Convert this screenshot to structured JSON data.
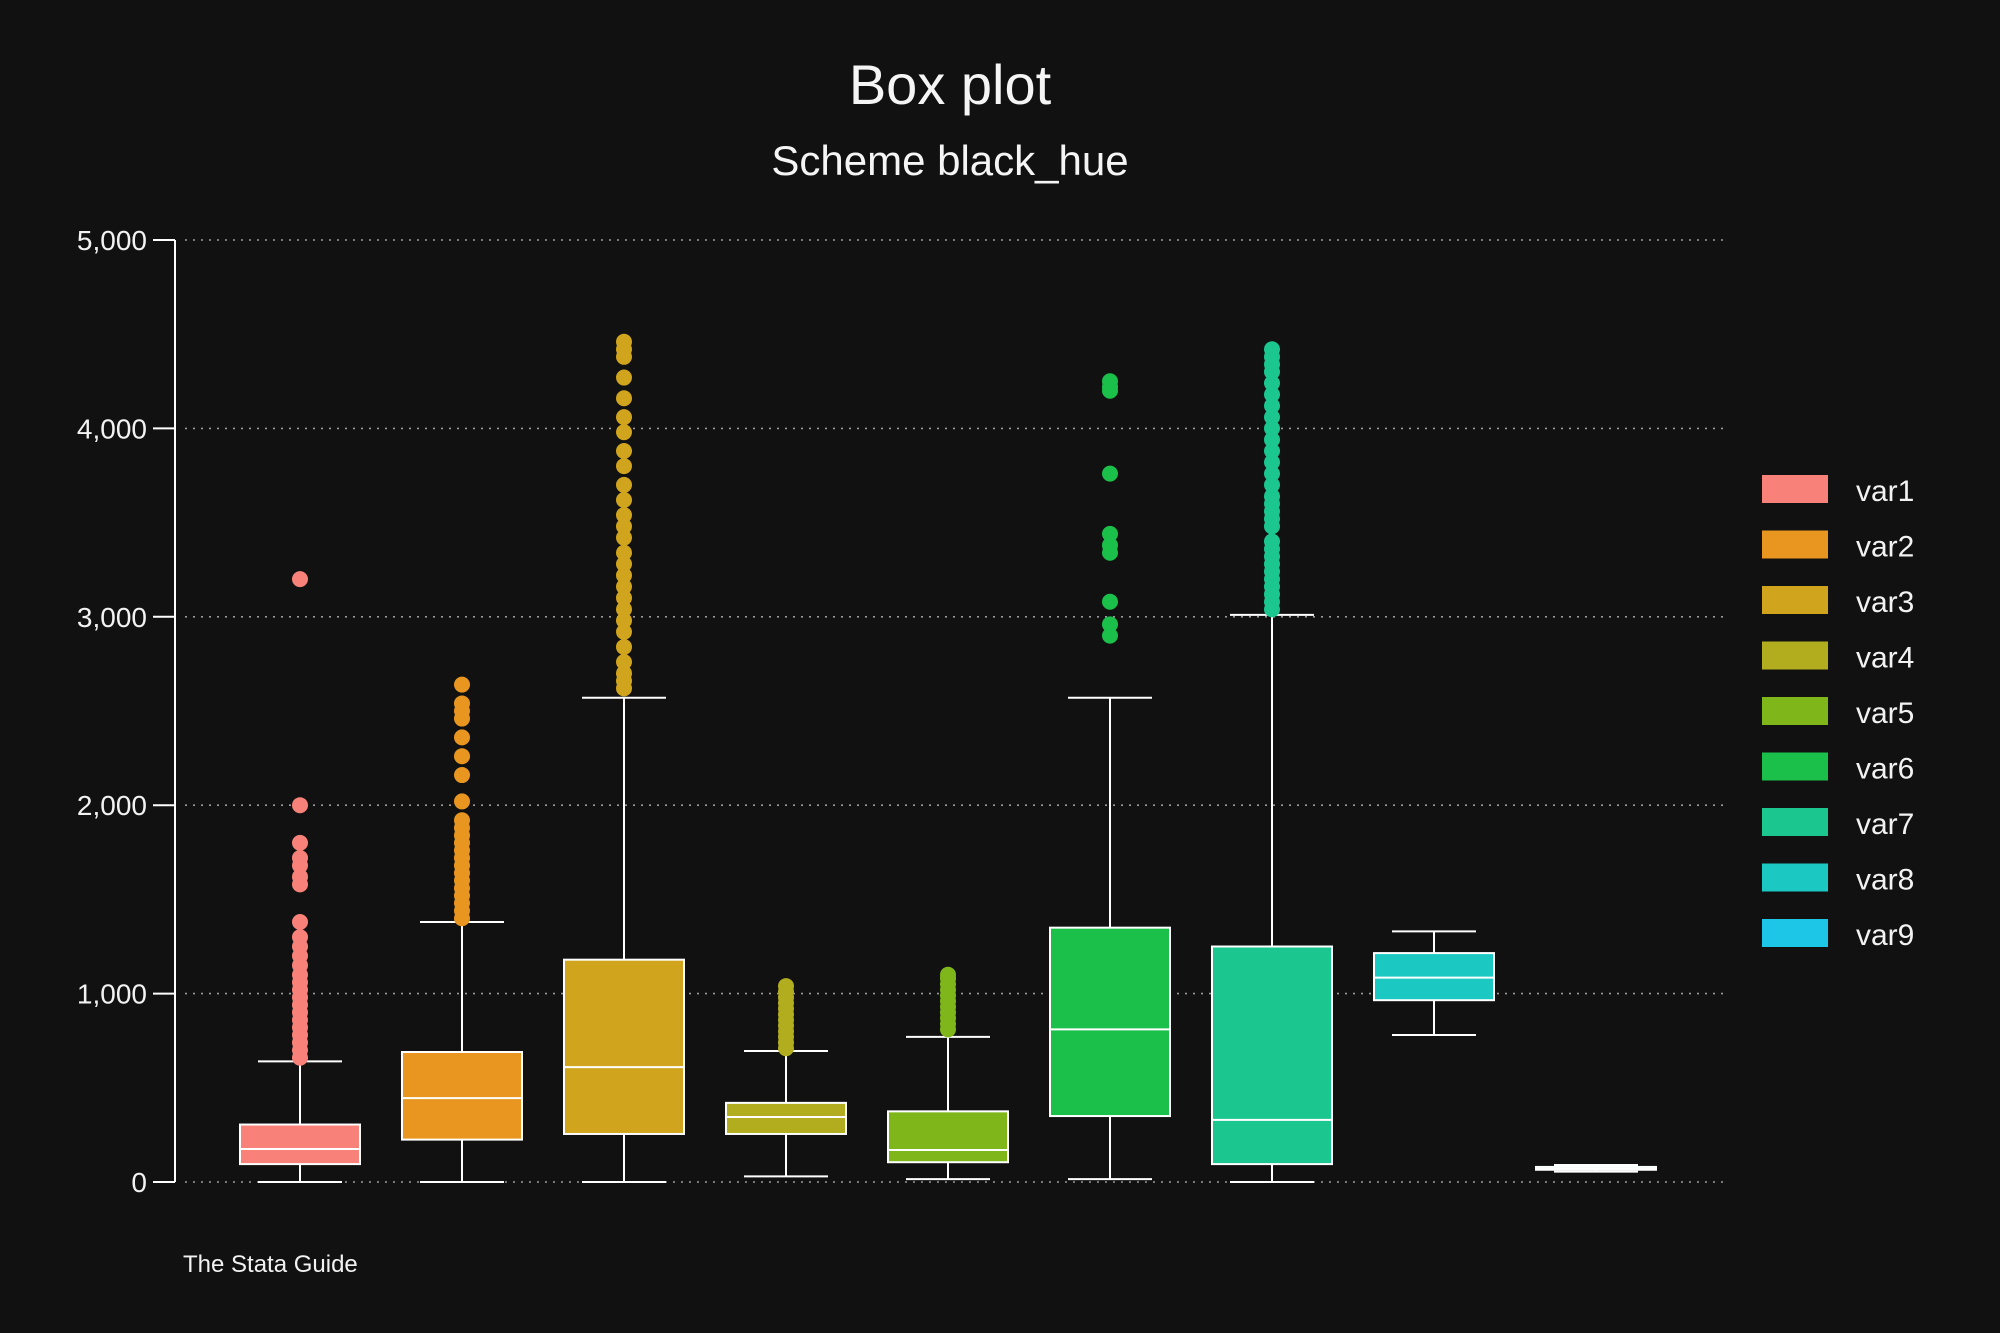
{
  "chart_data": {
    "type": "box",
    "title": "Box plot",
    "subtitle": "Scheme black_hue",
    "note": "The Stata Guide",
    "ylim": [
      0,
      5000
    ],
    "yticks": [
      0,
      1000,
      2000,
      3000,
      4000,
      5000
    ],
    "ytick_labels": [
      "0",
      "1,000",
      "2,000",
      "3,000",
      "4,000",
      "5,000"
    ],
    "grid": true,
    "legend_position": "right",
    "series": [
      {
        "name": "var1",
        "color": "#f8827a",
        "min": 0,
        "q1": 95,
        "median": 175,
        "q3": 305,
        "max": 640,
        "outliers": [
          660,
          700,
          740,
          780,
          820,
          860,
          900,
          940,
          980,
          1020,
          1060,
          1100,
          1150,
          1200,
          1250,
          1300,
          1380,
          1580,
          1620,
          1680,
          1720,
          1800,
          2000,
          3200
        ]
      },
      {
        "name": "var2",
        "color": "#e8961f",
        "min": 0,
        "q1": 225,
        "median": 445,
        "q3": 690,
        "max": 1380,
        "outliers": [
          1400,
          1440,
          1480,
          1520,
          1560,
          1600,
          1640,
          1680,
          1720,
          1760,
          1800,
          1840,
          1880,
          1920,
          2020,
          2160,
          2260,
          2360,
          2460,
          2500,
          2540,
          2640
        ]
      },
      {
        "name": "var3",
        "color": "#d1a41e",
        "min": 0,
        "q1": 255,
        "median": 610,
        "q3": 1180,
        "max": 2570,
        "outliers": [
          2620,
          2660,
          2700,
          2760,
          2840,
          2920,
          2980,
          3040,
          3100,
          3160,
          3220,
          3280,
          3340,
          3420,
          3480,
          3540,
          3620,
          3700,
          3800,
          3880,
          3980,
          4060,
          4160,
          4270,
          4380,
          4420,
          4460
        ]
      },
      {
        "name": "var4",
        "color": "#b1ad1f",
        "min": 30,
        "q1": 255,
        "median": 345,
        "q3": 420,
        "max": 695,
        "outliers": [
          710,
          740,
          770,
          800,
          830,
          860,
          890,
          920,
          950,
          980,
          1010,
          1040
        ]
      },
      {
        "name": "var5",
        "color": "#7fb71b",
        "min": 15,
        "q1": 105,
        "median": 170,
        "q3": 375,
        "max": 770,
        "outliers": [
          810,
          840,
          870,
          900,
          930,
          960,
          990,
          1020,
          1050,
          1080,
          1100
        ]
      },
      {
        "name": "var6",
        "color": "#1bc04a",
        "min": 15,
        "q1": 350,
        "median": 810,
        "q3": 1350,
        "max": 2570,
        "outliers": [
          2900,
          2960,
          3080,
          3340,
          3380,
          3440,
          3760,
          4200,
          4220,
          4250
        ]
      },
      {
        "name": "var7",
        "color": "#1bc68f",
        "min": 0,
        "q1": 95,
        "median": 330,
        "q3": 1250,
        "max": 3010,
        "outliers": [
          3040,
          3080,
          3120,
          3160,
          3200,
          3240,
          3280,
          3320,
          3360,
          3400,
          3480,
          3520,
          3560,
          3600,
          3640,
          3700,
          3760,
          3820,
          3880,
          3940,
          4000,
          4060,
          4120,
          4180,
          4240,
          4300,
          4340,
          4380,
          4420
        ]
      },
      {
        "name": "var8",
        "color": "#1bc9c2",
        "min": 780,
        "q1": 965,
        "median": 1085,
        "q3": 1215,
        "max": 1330,
        "outliers": []
      },
      {
        "name": "var9",
        "color": "#1dc6e6",
        "min": 55,
        "q1": 65,
        "median": 70,
        "q3": 80,
        "max": 90,
        "outliers": []
      }
    ]
  }
}
